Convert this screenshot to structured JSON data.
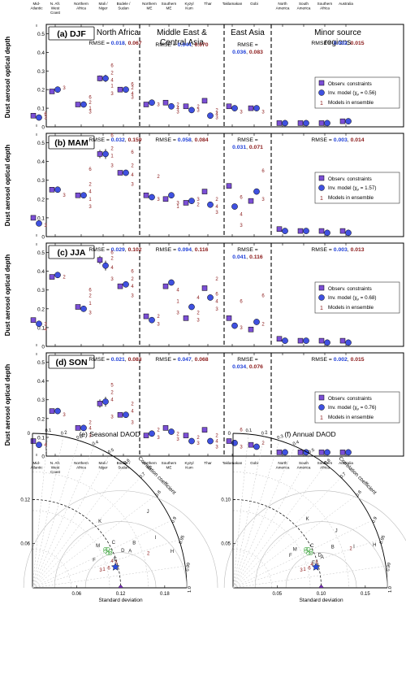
{
  "colors": {
    "obs": "#7b4fd6",
    "inv": "#3f51e0",
    "model": "#8b1a1a",
    "rmse_blue": "#1f3fd8",
    "rmse_red": "#8b1a1a",
    "taylor_line": "#999999",
    "taylor_grid": "#bbbbbb"
  },
  "chart_data": [
    {
      "type": "scatter",
      "ylabel": "Dust aerosol optical depth",
      "regions_top": [
        "Mid-\nAtlantic",
        "N. Afr.\nWest\nCoast",
        "Northern\nAfrica",
        "Mali /\nNiger",
        "Bodele /\nSudan",
        "Northern\nME",
        "Southern\nME",
        "Kyzyl\nKum",
        "Thar",
        "Taklamakan",
        "Gobi",
        "North\nAmerica",
        "South\nAmerica",
        "Southern\nAfrica",
        "Australia"
      ],
      "regions_bottom": [
        "Mid-\nAtlantic",
        "N. Afr.\nWest\nCoast",
        "Northern\nAfrica",
        "Mali /\nNiger",
        "Bodele /\nSudan",
        "Northern\nME",
        "Southern\nME",
        "Kyzyl\nKum",
        "Thar",
        "Taklamakan",
        "Gobi",
        "North\nAmerica",
        "South\nAmerica",
        "Southern\nAfrica",
        "Australia"
      ],
      "group_titles": [
        "North Africa",
        "Middle East &\nCentral Asia",
        "East Asia",
        "Minor source\nregions"
      ],
      "legend": {
        "obs": "Observ. constraints",
        "inv_prefix": "Inv. model (",
        "inv_chi": "χ",
        "inv_sub": "ν",
        "models_label": "Models in ensemble",
        "model_marker": "1"
      },
      "y_ticks": [
        "0",
        "0.1",
        "0.2",
        "0.3",
        "0.4",
        "0.5"
      ],
      "ylim": [
        0,
        0.55
      ],
      "rmse_label": "RMSE = ",
      "seasons": [
        {
          "label": "(a) DJF",
          "chi": "0.56",
          "rmse": [
            [
              "0.018",
              "0.067"
            ],
            [
              "0.044",
              "0.070"
            ],
            [
              "0.036",
              "0.083"
            ],
            [
              "0.002",
              "0.015"
            ]
          ],
          "obs": [
            0.06,
            0.19,
            0.12,
            0.26,
            0.2,
            0.12,
            0.13,
            0.11,
            0.14,
            0.11,
            0.1,
            0.02,
            0.02,
            0.02,
            0.03
          ],
          "inv": [
            0.05,
            0.2,
            0.12,
            0.26,
            0.2,
            0.13,
            0.11,
            0.09,
            0.06,
            0.1,
            0.1,
            0.02,
            0.02,
            0.02,
            0.03
          ]
        },
        {
          "label": "(b) MAM",
          "chi": "1.57",
          "rmse": [
            [
              "0.032",
              "0.159"
            ],
            [
              "0.058",
              "0.084"
            ],
            [
              "0.031",
              "0.071"
            ],
            [
              "0.003",
              "0.014"
            ]
          ],
          "obs": [
            0.1,
            0.25,
            0.22,
            0.44,
            0.34,
            0.22,
            0.2,
            0.18,
            0.24,
            0.27,
            0.19,
            0.04,
            0.03,
            0.03,
            0.03
          ],
          "inv": [
            0.07,
            0.25,
            0.22,
            0.44,
            0.34,
            0.21,
            0.22,
            0.19,
            0.17,
            0.16,
            0.24,
            0.03,
            0.03,
            0.02,
            0.02
          ]
        },
        {
          "label": "(c) JJA",
          "chi": "0.68",
          "rmse": [
            [
              "0.029",
              "0.102"
            ],
            [
              "0.094",
              "0.116"
            ],
            [
              "0.041",
              "0.116"
            ],
            [
              "0.003",
              "0.013"
            ]
          ],
          "obs": [
            0.14,
            0.37,
            0.21,
            0.46,
            0.32,
            0.16,
            0.32,
            0.15,
            0.31,
            0.15,
            0.09,
            0.04,
            0.03,
            0.03,
            0.03
          ],
          "inv": [
            0.12,
            0.38,
            0.2,
            0.43,
            0.33,
            0.14,
            0.34,
            0.21,
            0.26,
            0.11,
            0.13,
            0.03,
            0.03,
            0.02,
            0.02
          ]
        },
        {
          "label": "(d) SON",
          "chi": "0.76",
          "rmse": [
            [
              "0.021",
              "0.083"
            ],
            [
              "0.047",
              "0.068"
            ],
            [
              "0.034",
              "0.076"
            ],
            [
              "0.002",
              "0.015"
            ]
          ],
          "obs": [
            0.08,
            0.24,
            0.15,
            0.28,
            0.22,
            0.11,
            0.15,
            0.11,
            0.14,
            0.08,
            0.06,
            0.02,
            0.02,
            0.02,
            0.02
          ],
          "inv": [
            0.06,
            0.24,
            0.15,
            0.29,
            0.22,
            0.12,
            0.13,
            0.08,
            0.08,
            0.07,
            0.05,
            0.02,
            0.02,
            0.02,
            0.02
          ]
        }
      ]
    },
    {
      "type": "scatter",
      "panels": [
        {
          "title": "(e) Seasonal DAOD",
          "r_ticks": [
            "0.06",
            "0.12",
            "0.18"
          ],
          "y_ticks": [
            "0.06",
            "0.12"
          ],
          "max_std": 0.21,
          "ref_std": 0.12,
          "ylabel_top": "0"
        },
        {
          "title": "(f) Annual DAOD",
          "r_ticks": [
            "0.05",
            "0.10",
            "0.15"
          ],
          "y_ticks": [
            "0.05",
            "0.10"
          ],
          "max_std": 0.175,
          "ref_std": 0.1,
          "ylabel_top": "0"
        }
      ],
      "axis_label": "Standard deviation",
      "corr_label": "Correlation coefficient",
      "corr_ticks": [
        "0.1",
        "0.2",
        "0.3",
        "0.4",
        "0.5",
        "0.6",
        "0.7",
        "0.8",
        "0.9",
        "0.95",
        "0.99",
        "1.0"
      ],
      "letters": [
        "A",
        "B",
        "C",
        "D",
        "E",
        "F",
        "H",
        "I",
        "J",
        "K",
        "M"
      ],
      "numbers": [
        "1",
        "2",
        "3",
        "4",
        "5",
        "6"
      ]
    }
  ]
}
